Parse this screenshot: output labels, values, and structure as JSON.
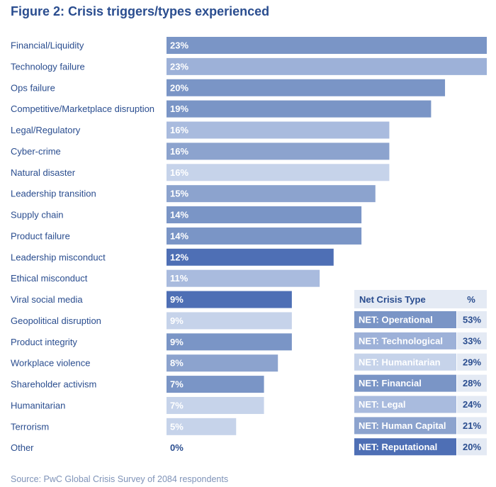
{
  "colors": {
    "title": "#2a4d8f",
    "label": "#2a4d8f",
    "source": "#7f93b8",
    "table_header_bg": "#e4eaf4",
    "white": "#ffffff"
  },
  "chart_data": {
    "type": "bar",
    "orientation": "horizontal",
    "title": "Figure 2: Crisis triggers/types experienced",
    "categories": [
      "Financial/Liquidity",
      "Technology failure",
      "Ops failure",
      "Competitive/Marketplace disruption",
      "Legal/Regulatory",
      "Cyber-crime",
      "Natural disaster",
      "Leadership transition",
      "Supply chain",
      "Product failure",
      "Leadership misconduct",
      "Ethical misconduct",
      "Viral social media",
      "Geopolitical disruption",
      "Product integrity",
      "Workplace violence",
      "Shareholder activism",
      "Humanitarian",
      "Terrorism",
      "Other"
    ],
    "values": [
      23,
      23,
      20,
      19,
      16,
      16,
      16,
      15,
      14,
      14,
      12,
      11,
      9,
      9,
      9,
      8,
      7,
      7,
      5,
      0
    ],
    "value_labels": [
      "23%",
      "23%",
      "20%",
      "19%",
      "16%",
      "16%",
      "16%",
      "15%",
      "14%",
      "14%",
      "12%",
      "11%",
      "9%",
      "9%",
      "9%",
      "8%",
      "7%",
      "7%",
      "5%",
      "0%"
    ],
    "bar_colors": [
      "#7a95c6",
      "#9db1d8",
      "#7a95c6",
      "#7a95c6",
      "#a9bbde",
      "#8ca3ce",
      "#c6d3ea",
      "#8ca3ce",
      "#7a95c6",
      "#7a95c6",
      "#4e6fb5",
      "#a9bbde",
      "#4e6fb5",
      "#c6d3ea",
      "#7a95c6",
      "#8ca3ce",
      "#7a95c6",
      "#c6d3ea",
      "#c6d3ea",
      "#7a95c6"
    ],
    "xlim": [
      0,
      23
    ],
    "xlabel": "",
    "ylabel": "",
    "grid": false,
    "net_table": {
      "header": "Net Crisis Type",
      "pct_header": "%",
      "rows": [
        {
          "label": "NET: Operational",
          "value": "53%",
          "color": "#7a95c6"
        },
        {
          "label": "NET: Technological",
          "value": "33%",
          "color": "#9db1d8"
        },
        {
          "label": "NET: Humanitarian",
          "value": "29%",
          "color": "#c6d3ea"
        },
        {
          "label": "NET: Financial",
          "value": "28%",
          "color": "#7a95c6"
        },
        {
          "label": "NET: Legal",
          "value": "24%",
          "color": "#a9bbde"
        },
        {
          "label": "NET: Human Capital",
          "value": "21%",
          "color": "#8ca3ce"
        },
        {
          "label": "NET: Reputational",
          "value": "20%",
          "color": "#4e6fb5"
        }
      ]
    },
    "source": "Source: PwC Global Crisis Survey of 2084 respondents"
  }
}
